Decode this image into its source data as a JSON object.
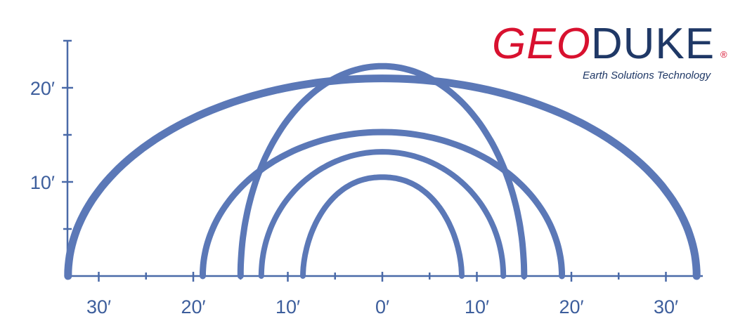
{
  "logo": {
    "part1": "GEO",
    "part2": "DUKE",
    "registered": "®",
    "tagline": "Earth Solutions Technology",
    "color_part1": "#d8112f",
    "color_part2": "#1f3866"
  },
  "chart_data": {
    "type": "line",
    "title": "",
    "xlabel": "",
    "ylabel": "",
    "xlim": [
      -33.5,
      33.5
    ],
    "ylim": [
      0,
      25
    ],
    "x_ticks": [
      {
        "value": -30,
        "label": "30′"
      },
      {
        "value": -20,
        "label": "20′"
      },
      {
        "value": -10,
        "label": "10′"
      },
      {
        "value": 0,
        "label": "0′"
      },
      {
        "value": 10,
        "label": "10′"
      },
      {
        "value": 20,
        "label": "20′"
      },
      {
        "value": 30,
        "label": "30′"
      }
    ],
    "x_minor_ticks": [
      -25,
      -15,
      -5,
      5,
      15,
      25
    ],
    "y_ticks": [
      {
        "value": 10,
        "label": "10′"
      },
      {
        "value": 20,
        "label": "20′"
      }
    ],
    "y_minor_ticks": [
      5,
      15,
      25
    ],
    "grid": false,
    "line_color": "#5b78b7",
    "series": [
      {
        "span": 66.5,
        "rise": 21.0,
        "shape": "semi-ellipse"
      },
      {
        "span": 38.0,
        "rise": 15.3,
        "shape": "semi-ellipse"
      },
      {
        "span": 30.0,
        "rise": 22.3,
        "shape": "semi-ellipse"
      },
      {
        "span": 25.6,
        "rise": 13.2,
        "shape": "semi-ellipse"
      },
      {
        "span": 16.8,
        "rise": 10.5,
        "shape": "pointed"
      }
    ]
  }
}
